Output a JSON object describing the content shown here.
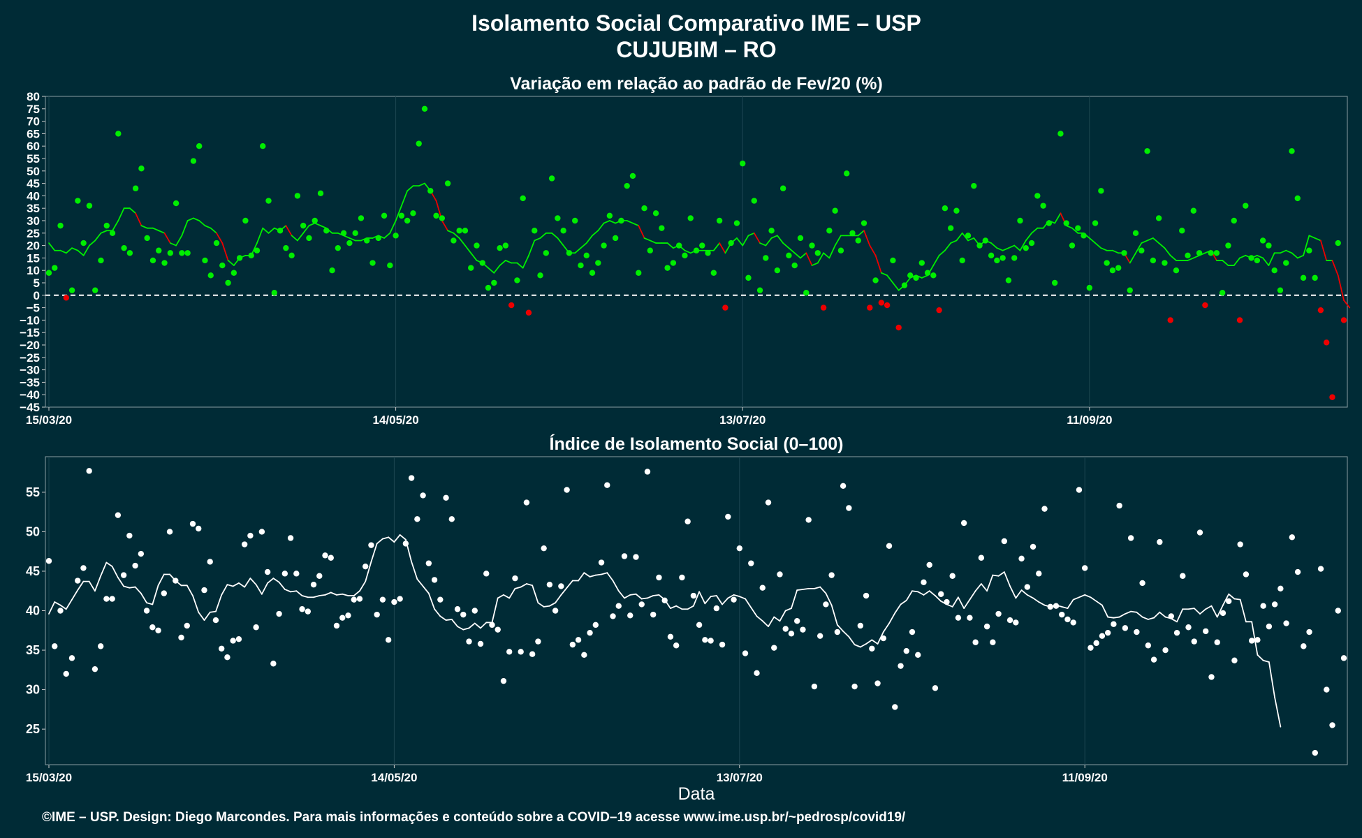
{
  "title": "Isolamento Social Comparativo IME – USP",
  "subtitle": "CUJUBIM – RO",
  "xlabel": "Data",
  "footer": "©IME – USP. Design: Diego Marcondes. Para mais informações e conteúdo sobre a COVID–19 acesse www.ime.usp.br/~pedrosp/covid19/",
  "colors": {
    "background": "#002b36",
    "positive": "#00ee00",
    "negative": "#ee0000",
    "index_series": "#ffffff",
    "gridline": "#1d4752",
    "reference_line": "#ffffff"
  },
  "chart_data": [
    {
      "type": "scatter",
      "title": "Variação em relação ao padrão de Fev/20 (%)",
      "x_start": "15/03/20",
      "x_end": "22/10/20",
      "x_tick_labels": [
        "15/03/20",
        "14/05/20",
        "13/07/20",
        "11/09/20"
      ],
      "x_tick_day_index": [
        0,
        60,
        120,
        180
      ],
      "ylim": [
        -45,
        80
      ],
      "y_ticks": [
        -45,
        -40,
        -35,
        -30,
        -25,
        -20,
        -15,
        -10,
        -5,
        0,
        5,
        10,
        15,
        20,
        25,
        30,
        35,
        40,
        45,
        50,
        55,
        60,
        65,
        70,
        75,
        80
      ],
      "y_tick_labels": [
        "−45",
        "−40",
        "−35",
        "−30",
        "−25",
        "−20",
        "−15",
        "−10",
        "−5",
        "0",
        "5",
        "10",
        "15",
        "20",
        "25",
        "30",
        "35",
        "40",
        "45",
        "50",
        "55",
        "60",
        "65",
        "70",
        "75",
        "80"
      ],
      "reference_line": 0,
      "grid": true,
      "legend": "none",
      "series": [
        {
          "kind": "points",
          "values": [
            9,
            11,
            28,
            -1,
            2,
            38,
            21,
            36,
            2,
            14,
            28,
            25,
            65,
            19,
            17,
            43,
            51,
            23,
            14,
            18,
            13,
            17,
            37,
            17,
            17,
            54,
            60,
            14,
            8,
            21,
            12,
            5,
            9,
            15,
            30,
            16,
            18,
            60,
            38,
            1,
            26,
            19,
            16,
            40,
            28,
            23,
            30,
            41,
            26,
            10,
            19,
            25,
            21,
            25,
            31,
            22,
            13,
            23,
            32,
            12,
            24,
            32,
            30,
            33,
            61,
            75,
            42,
            32,
            31,
            45,
            22,
            26,
            26,
            11,
            20,
            13,
            3,
            5,
            19,
            20,
            -4,
            6,
            39,
            -7,
            26,
            8,
            17,
            47,
            31,
            26,
            17,
            30,
            12,
            16,
            9,
            13,
            20,
            32,
            23,
            30,
            44,
            48,
            9,
            35,
            18,
            33,
            27,
            11,
            13,
            20,
            16,
            31,
            18,
            20,
            17,
            9,
            30,
            -5,
            21,
            29,
            53,
            7,
            38,
            2,
            15,
            26,
            10,
            43,
            16,
            12,
            23,
            1,
            20,
            17,
            -5,
            26,
            34,
            18,
            49,
            25,
            22,
            29,
            -5,
            6,
            -3,
            -4,
            14,
            -13,
            4,
            8,
            7,
            13,
            9,
            8,
            -6,
            35,
            27,
            34,
            14,
            24,
            44,
            20,
            22,
            16,
            14,
            15,
            6,
            15,
            30,
            19,
            21,
            40,
            36,
            29,
            5,
            65,
            29,
            20,
            27,
            24,
            3,
            29,
            42,
            13,
            10,
            11,
            17,
            2,
            25,
            18,
            58,
            14,
            31,
            13,
            -10,
            10,
            26,
            16,
            34,
            17,
            -4,
            17,
            17,
            1,
            20,
            30,
            -10,
            36,
            15,
            14,
            22,
            20,
            10,
            2,
            13,
            58,
            39,
            7,
            18,
            7,
            -6,
            -19,
            -41,
            21,
            -10
          ]
        },
        {
          "kind": "moving_average",
          "values": [
            21,
            18,
            18,
            17,
            19,
            18,
            16,
            20,
            22,
            25,
            26,
            26,
            30,
            35,
            35,
            33,
            28,
            27,
            27,
            26,
            25,
            21,
            20,
            24,
            30,
            31,
            30,
            28,
            27,
            25,
            21,
            14,
            12,
            15,
            16,
            16,
            21,
            27,
            25,
            27,
            26,
            28,
            24,
            22,
            25,
            28,
            29,
            28,
            27,
            25,
            25,
            24,
            23,
            22,
            22,
            23,
            23,
            24,
            23,
            25,
            30,
            36,
            42,
            44,
            44,
            45,
            42,
            38,
            30,
            26,
            25,
            23,
            20,
            17,
            14,
            13,
            11,
            9,
            12,
            14,
            13,
            13,
            11,
            16,
            22,
            23,
            25,
            25,
            23,
            20,
            17,
            17,
            19,
            21,
            24,
            26,
            29,
            30,
            29,
            30,
            30,
            29,
            28,
            23,
            22,
            21,
            21,
            21,
            19,
            20,
            18,
            17,
            18,
            18,
            18,
            18,
            21,
            17,
            21,
            23,
            20,
            24,
            25,
            21,
            20,
            23,
            24,
            21,
            19,
            17,
            15,
            17,
            12,
            13,
            17,
            15,
            20,
            24,
            24,
            24,
            24,
            26,
            20,
            16,
            9,
            8,
            5,
            2,
            4,
            7,
            8,
            7,
            8,
            12,
            16,
            18,
            21,
            22,
            25,
            22,
            23,
            20,
            22,
            21,
            19,
            18,
            19,
            20,
            18,
            22,
            25,
            27,
            27,
            30,
            29,
            33,
            28,
            27,
            25,
            25,
            23,
            21,
            19,
            18,
            18,
            17,
            17,
            13,
            17,
            21,
            22,
            23,
            21,
            19,
            16,
            14,
            14,
            14,
            15,
            16,
            17,
            18,
            14,
            14,
            12,
            12,
            15,
            16,
            15,
            16,
            15,
            12,
            17,
            17,
            18,
            17,
            15,
            16,
            24,
            23,
            22,
            14,
            14,
            8,
            -2,
            -5
          ]
        }
      ]
    },
    {
      "type": "scatter",
      "title": "Índice de Isolamento Social (0–100)",
      "x_start": "15/03/20",
      "x_end": "22/10/20",
      "x_tick_labels": [
        "15/03/20",
        "14/05/20",
        "13/07/20",
        "11/09/20"
      ],
      "x_tick_day_index": [
        0,
        60,
        120,
        180
      ],
      "ylim": [
        20.5,
        59.5
      ],
      "y_ticks": [
        25,
        30,
        35,
        40,
        45,
        50,
        55
      ],
      "y_tick_labels": [
        "25",
        "30",
        "35",
        "40",
        "45",
        "50",
        "55"
      ],
      "grid": true,
      "legend": "none",
      "series": [
        {
          "kind": "points",
          "values": [
            46.3,
            35.5,
            40.0,
            32.0,
            34.0,
            43.8,
            45.4,
            57.7,
            32.6,
            35.5,
            41.5,
            41.5,
            52.1,
            44.5,
            49.5,
            45.7,
            47.2,
            40.0,
            37.9,
            37.5,
            42.2,
            50.0,
            43.8,
            36.6,
            38.1,
            51.0,
            50.4,
            42.6,
            46.2,
            38.8,
            35.2,
            34.1,
            36.2,
            36.4,
            48.4,
            49.5,
            37.9,
            50.0,
            44.9,
            33.3,
            39.6,
            44.7,
            49.2,
            44.7,
            40.2,
            39.9,
            43.3,
            44.4,
            47.0,
            46.7,
            38.1,
            39.1,
            39.4,
            41.4,
            41.5,
            45.6,
            48.3,
            39.5,
            41.4,
            36.3,
            41.1,
            41.5,
            48.5,
            56.8,
            51.6,
            54.6,
            46.0,
            43.9,
            41.4,
            54.3,
            51.6,
            40.2,
            39.5,
            36.1,
            40.0,
            35.8,
            44.7,
            38.2,
            37.6,
            31.1,
            34.8,
            44.1,
            34.8,
            53.7,
            34.5,
            36.1,
            47.9,
            43.3,
            40.0,
            43.1,
            55.3,
            35.7,
            36.3,
            34.4,
            37.2,
            38.2,
            46.1,
            55.9,
            39.3,
            40.6,
            46.9,
            39.4,
            46.8,
            40.8,
            57.6,
            39.5,
            44.2,
            41.3,
            36.7,
            35.6,
            44.2,
            51.3,
            41.9,
            38.2,
            36.3,
            36.2,
            40.3,
            35.7,
            51.9,
            41.4,
            47.9,
            34.6,
            46.0,
            32.1,
            42.9,
            53.7,
            35.3,
            44.6,
            37.7,
            37.1,
            38.7,
            37.6,
            51.5,
            30.4,
            36.8,
            40.8,
            44.5,
            37.3,
            55.8,
            53.0,
            30.4,
            38.1,
            41.9,
            35.2,
            30.8,
            36.5,
            48.2,
            27.8,
            33.0,
            34.9,
            37.3,
            34.4,
            43.6,
            45.8,
            30.2,
            42.1,
            41.1,
            44.4,
            39.1,
            51.1,
            39.1,
            36.0,
            46.7,
            38.0,
            36.0,
            39.6,
            48.8,
            38.8,
            38.5,
            46.6,
            43.0,
            48.1,
            44.7,
            52.9,
            40.5,
            40.6,
            39.5,
            38.9,
            38.5,
            55.3,
            45.4,
            35.3,
            35.9,
            36.8,
            37.2,
            38.3,
            53.3,
            37.8,
            49.2,
            37.3,
            43.5,
            35.6,
            33.8,
            48.7,
            35.0,
            39.3,
            37.2,
            44.4,
            37.9,
            36.1,
            49.9,
            37.4,
            31.6,
            36.0,
            39.7,
            41.2,
            33.7,
            48.4,
            44.6,
            36.2,
            36.3,
            40.6,
            38.0,
            40.8,
            42.8,
            38.4,
            49.3,
            44.9,
            35.5,
            37.3,
            22.0,
            45.3,
            30.0,
            25.5,
            40.0,
            34.0
          ]
        },
        {
          "kind": "moving_average",
          "values": [
            39.6,
            41.1,
            40.7,
            40.2,
            41.4,
            42.6,
            43.7,
            43.7,
            42.5,
            44.4,
            46.1,
            45.6,
            44.2,
            43.1,
            42.9,
            43.0,
            42.2,
            41.0,
            40.8,
            43.2,
            44.6,
            44.6,
            43.8,
            43.2,
            43.2,
            41.9,
            39.8,
            38.8,
            39.8,
            39.9,
            42.0,
            43.3,
            43.1,
            43.5,
            43.0,
            44.1,
            43.3,
            42.1,
            43.5,
            44.1,
            43.6,
            42.7,
            42.4,
            42.5,
            41.9,
            41.7,
            41.7,
            41.9,
            42.0,
            42.3,
            42.0,
            42.1,
            41.9,
            41.9,
            42.5,
            43.7,
            46.2,
            48.5,
            49.1,
            49.3,
            48.7,
            49.6,
            49.0,
            46.2,
            44.0,
            43.1,
            42.2,
            40.2,
            39.3,
            38.8,
            38.9,
            38.0,
            37.6,
            37.8,
            38.4,
            37.8,
            38.5,
            38.5,
            41.6,
            42.0,
            41.6,
            42.8,
            43.0,
            43.4,
            43.2,
            41.0,
            40.5,
            40.6,
            41.0,
            42.0,
            42.9,
            43.8,
            43.8,
            44.8,
            44.3,
            44.5,
            44.6,
            44.8,
            43.8,
            42.5,
            41.6,
            42.0,
            42.1,
            41.5,
            41.6,
            41.9,
            42.0,
            41.4,
            40.3,
            40.6,
            40.2,
            40.2,
            40.6,
            42.4,
            40.9,
            41.8,
            41.9,
            40.8,
            41.6,
            42.0,
            41.8,
            41.5,
            40.4,
            39.3,
            38.7,
            38.0,
            39.2,
            38.7,
            40.0,
            40.3,
            42.6,
            42.7,
            42.8,
            42.8,
            43.0,
            42.2,
            40.7,
            38.2,
            37.4,
            36.7,
            35.7,
            35.4,
            35.8,
            36.3,
            35.8,
            37.3,
            38.4,
            39.7,
            40.8,
            41.3,
            42.5,
            42.4,
            42.0,
            42.5,
            41.9,
            41.2,
            40.8,
            40.5,
            41.7,
            40.3,
            41.4,
            42.5,
            43.4,
            42.5,
            44.5,
            44.4,
            44.9,
            43.1,
            41.6,
            42.6,
            42.0,
            41.6,
            41.1,
            40.7,
            40.5,
            40.7,
            40.5,
            40.3,
            41.4,
            41.7,
            42.0,
            41.7,
            41.2,
            40.7,
            39.2,
            39.1,
            39.2,
            39.6,
            39.9,
            39.8,
            39.2,
            38.9,
            39.1,
            39.8,
            39.2,
            39.0,
            38.6,
            40.2,
            40.2,
            40.3,
            39.6,
            40.2,
            40.6,
            39.2,
            40.7,
            42.1,
            41.5,
            41.4,
            38.6,
            38.6,
            34.4,
            33.7,
            33.5,
            29.0,
            25.3
          ]
        }
      ]
    }
  ]
}
